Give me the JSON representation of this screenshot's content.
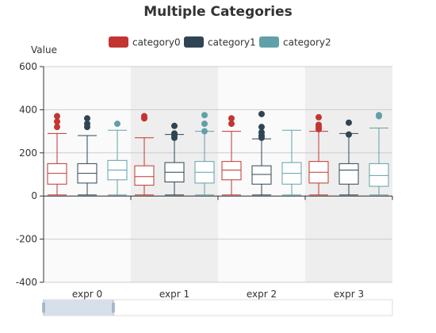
{
  "chart_data": {
    "type": "boxplot",
    "title": "Multiple Categories",
    "ylabel": "Value",
    "xlabel": "",
    "ylim": [
      -400,
      600
    ],
    "yticks": [
      600,
      400,
      200,
      0,
      -200,
      -400
    ],
    "categories": [
      "expr 0",
      "expr 1",
      "expr 2",
      "expr 3"
    ],
    "legend_position": "top-center",
    "grid": true,
    "alternating_band_colors": [
      "#fafafa",
      "#eeeeee"
    ],
    "series": [
      {
        "name": "category0",
        "color": "#c23531",
        "boxes": [
          {
            "min": 5,
            "q1": 55,
            "median": 105,
            "q3": 150,
            "max": 290
          },
          {
            "min": 5,
            "q1": 50,
            "median": 90,
            "q3": 140,
            "max": 270
          },
          {
            "min": 5,
            "q1": 75,
            "median": 120,
            "q3": 160,
            "max": 300
          },
          {
            "min": 5,
            "q1": 60,
            "median": 110,
            "q3": 160,
            "max": 300
          }
        ],
        "outliers": [
          [
            0,
            370
          ],
          [
            0,
            345
          ],
          [
            0,
            320
          ],
          [
            1,
            370
          ],
          [
            1,
            360
          ],
          [
            2,
            360
          ],
          [
            2,
            335
          ],
          [
            3,
            365
          ],
          [
            3,
            330
          ],
          [
            3,
            320
          ],
          [
            3,
            310
          ]
        ]
      },
      {
        "name": "category1",
        "color": "#2f4554",
        "boxes": [
          {
            "min": 5,
            "q1": 60,
            "median": 105,
            "q3": 150,
            "max": 280
          },
          {
            "min": 5,
            "q1": 65,
            "median": 110,
            "q3": 155,
            "max": 285
          },
          {
            "min": 5,
            "q1": 55,
            "median": 100,
            "q3": 140,
            "max": 265
          },
          {
            "min": 5,
            "q1": 55,
            "median": 120,
            "q3": 150,
            "max": 290
          }
        ],
        "outliers": [
          [
            0,
            360
          ],
          [
            0,
            335
          ],
          [
            0,
            320
          ],
          [
            1,
            325
          ],
          [
            1,
            290
          ],
          [
            1,
            280
          ],
          [
            1,
            270
          ],
          [
            2,
            380
          ],
          [
            2,
            320
          ],
          [
            2,
            295
          ],
          [
            2,
            280
          ],
          [
            2,
            270
          ],
          [
            3,
            340
          ],
          [
            3,
            285
          ]
        ]
      },
      {
        "name": "category2",
        "color": "#61a0a8",
        "boxes": [
          {
            "min": 5,
            "q1": 75,
            "median": 120,
            "q3": 165,
            "max": 305
          },
          {
            "min": 5,
            "q1": 60,
            "median": 110,
            "q3": 160,
            "max": 300
          },
          {
            "min": 5,
            "q1": 55,
            "median": 105,
            "q3": 155,
            "max": 305
          },
          {
            "min": 5,
            "q1": 45,
            "median": 95,
            "q3": 150,
            "max": 315
          }
        ],
        "outliers": [
          [
            0,
            335
          ],
          [
            1,
            375
          ],
          [
            1,
            335
          ],
          [
            1,
            300
          ],
          [
            3,
            375
          ],
          [
            3,
            370
          ]
        ]
      }
    ]
  },
  "data_zoom": {
    "range_start_pct": 0,
    "range_end_pct": 20
  }
}
